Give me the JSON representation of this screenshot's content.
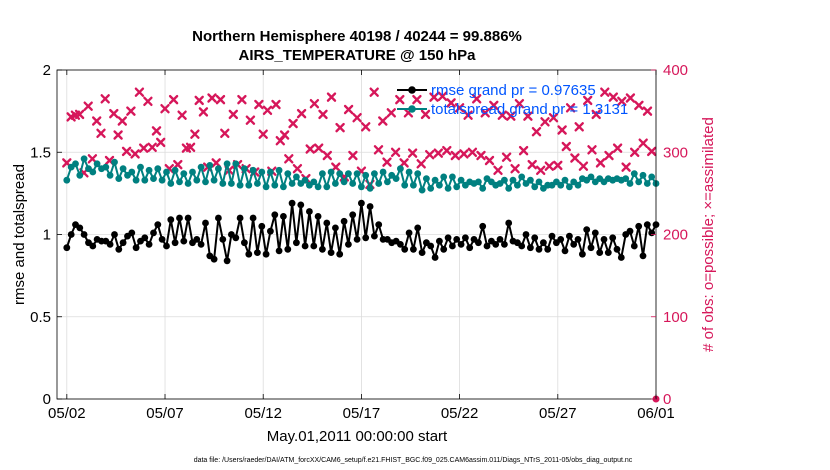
{
  "chart_data": {
    "type": "line",
    "title": "Northern Hemisphere 40198 / 40244 = 99.886%",
    "subtitle": "AIRS_TEMPERATURE @ 150 hPa",
    "xlabel": "May.01,2011 00:00:00 start",
    "ylabel_left": "rmse and totalspread",
    "ylabel_right": "# of obs: o=possible; ×=assimilated",
    "x_tick_labels": [
      "05/02",
      "05/07",
      "05/12",
      "05/17",
      "05/22",
      "05/27",
      "06/01"
    ],
    "x_tick_days": [
      1,
      6,
      11,
      16,
      21,
      26,
      31
    ],
    "xlim_days": [
      0.5,
      31.0
    ],
    "ylim_left": [
      0,
      2
    ],
    "ylim_right": [
      0,
      400
    ],
    "y_ticks_left": [
      "0",
      "0.5",
      "1",
      "1.5",
      "2"
    ],
    "y_ticks_right": [
      "0",
      "100",
      "200",
      "300",
      "400"
    ],
    "grid": true,
    "legend_position": "top-right",
    "colors": {
      "rmse": "#000000",
      "totalspread": "#008080",
      "obs": "#d6175a",
      "legend_text": "#0055ff",
      "grid": "#dcdcdc"
    },
    "series": [
      {
        "name": "rmse grand pr = 0.97635",
        "axis": "left",
        "values": [
          0.92,
          1.0,
          1.06,
          1.04,
          1.0,
          0.95,
          0.93,
          0.97,
          0.96,
          0.96,
          0.94,
          1.0,
          0.91,
          0.95,
          0.99,
          1.01,
          0.92,
          0.96,
          0.98,
          0.94,
          1.01,
          1.06,
          0.97,
          0.93,
          1.09,
          0.95,
          1.1,
          0.96,
          1.1,
          0.95,
          0.97,
          0.94,
          1.07,
          0.87,
          0.85,
          1.1,
          0.97,
          0.84,
          1.0,
          0.98,
          1.1,
          0.95,
          0.88,
          1.1,
          0.89,
          1.05,
          0.88,
          1.02,
          1.12,
          0.9,
          1.11,
          0.91,
          1.19,
          0.95,
          1.18,
          0.93,
          1.14,
          0.93,
          1.11,
          0.91,
          1.07,
          0.89,
          1.04,
          0.88,
          1.08,
          0.94,
          1.12,
          0.97,
          1.19,
          0.98,
          1.17,
          0.99,
          1.06,
          0.97,
          0.97,
          0.95,
          0.96,
          0.94,
          0.91,
          1.01,
          0.91,
          1.04,
          0.89,
          0.95,
          0.93,
          0.86,
          0.96,
          0.91,
          0.98,
          0.93,
          0.97,
          0.94,
          0.98,
          0.92,
          0.97,
          0.95,
          1.05,
          0.93,
          0.96,
          0.94,
          0.97,
          0.94,
          1.07,
          0.96,
          0.95,
          0.93,
          1.0,
          0.92,
          0.98,
          0.91,
          0.95,
          0.91,
          0.99,
          0.95,
          0.97,
          0.9,
          0.99,
          0.94,
          0.97,
          0.88,
          1.03,
          0.92,
          1.01,
          0.89,
          0.97,
          0.89,
          0.98,
          0.91,
          0.86,
          1.0,
          1.02,
          0.93,
          1.05,
          0.87,
          1.06,
          1.01,
          1.06
        ]
      },
      {
        "name": "totalspread grand pr = 1.3131",
        "axis": "left",
        "values": [
          1.33,
          1.41,
          1.43,
          1.36,
          1.46,
          1.4,
          1.38,
          1.43,
          1.4,
          1.41,
          1.36,
          1.44,
          1.34,
          1.4,
          1.36,
          1.38,
          1.33,
          1.41,
          1.33,
          1.39,
          1.34,
          1.4,
          1.33,
          1.38,
          1.31,
          1.39,
          1.32,
          1.37,
          1.31,
          1.38,
          1.33,
          1.41,
          1.32,
          1.42,
          1.33,
          1.4,
          1.31,
          1.43,
          1.31,
          1.43,
          1.3,
          1.4,
          1.3,
          1.39,
          1.31,
          1.38,
          1.29,
          1.38,
          1.3,
          1.39,
          1.29,
          1.37,
          1.31,
          1.35,
          1.31,
          1.33,
          1.3,
          1.32,
          1.29,
          1.37,
          1.29,
          1.38,
          1.31,
          1.37,
          1.32,
          1.37,
          1.31,
          1.37,
          1.29,
          1.36,
          1.28,
          1.37,
          1.31,
          1.38,
          1.32,
          1.36,
          1.34,
          1.4,
          1.3,
          1.38,
          1.3,
          1.37,
          1.27,
          1.34,
          1.28,
          1.33,
          1.3,
          1.35,
          1.28,
          1.35,
          1.29,
          1.33,
          1.3,
          1.32,
          1.31,
          1.32,
          1.28,
          1.34,
          1.32,
          1.3,
          1.31,
          1.33,
          1.28,
          1.33,
          1.3,
          1.35,
          1.31,
          1.33,
          1.29,
          1.32,
          1.28,
          1.3,
          1.3,
          1.32,
          1.3,
          1.33,
          1.29,
          1.32,
          1.3,
          1.34,
          1.33,
          1.35,
          1.32,
          1.34,
          1.32,
          1.34,
          1.33,
          1.34,
          1.33,
          1.34,
          1.31,
          1.37,
          1.32,
          1.36,
          1.31,
          1.35,
          1.31
        ]
      },
      {
        "name": "obs assimilated",
        "axis": "right",
        "values": [
          287,
          343,
          345,
          346,
          275,
          356,
          292,
          338,
          323,
          365,
          290,
          347,
          321,
          338,
          301,
          350,
          298,
          373,
          305,
          362,
          306,
          326,
          312,
          353,
          280,
          364,
          285,
          345,
          305,
          306,
          322,
          363,
          349,
          282,
          366,
          287,
          364,
          323,
          278,
          346,
          285,
          364,
          280,
          339,
          276,
          358,
          322,
          351,
          277,
          358,
          314,
          321,
          292,
          335,
          280,
          347,
          268,
          304,
          359,
          305,
          346,
          296,
          367,
          282,
          330,
          270,
          352,
          296,
          342,
          277,
          331,
          261,
          373,
          303,
          338,
          288,
          348,
          300,
          364,
          287,
          348,
          299,
          364,
          286,
          346,
          297,
          367,
          299,
          368,
          302,
          360,
          296,
          354,
          298,
          345,
          300,
          365,
          296,
          348,
          290,
          357,
          278,
          345,
          294,
          344,
          280,
          359,
          302,
          344,
          285,
          325,
          278,
          337,
          283,
          342,
          284,
          327,
          307,
          354,
          293,
          331,
          283,
          363,
          303,
          346,
          287,
          373,
          296,
          367,
          305,
          362,
          282,
          366,
          300,
          357,
          311,
          350,
          301,
          0
        ]
      }
    ],
    "footer": "data file: /Users/raeder/DAI/ATM_forcXX/CAM6_setup/f.e21.FHIST_BGC.f09_025.CAM6assim.011/Diags_NTrS_2011-05/obs_diag_output.nc"
  }
}
